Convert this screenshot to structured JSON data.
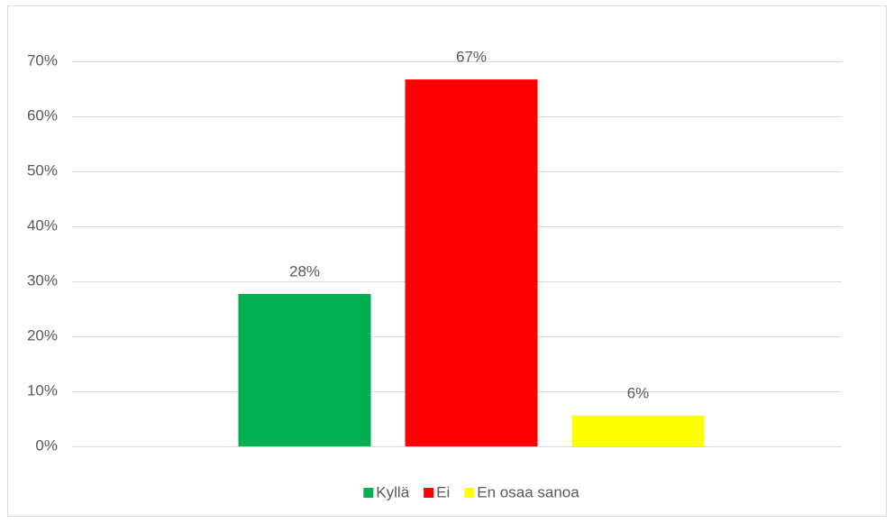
{
  "chart_data": {
    "type": "bar",
    "categories": [
      null
    ],
    "series": [
      {
        "name": "Kyllä",
        "color": "#00b050",
        "values": [
          27.7
        ],
        "value_labels": [
          "28%"
        ]
      },
      {
        "name": "Ei",
        "color": "#ff0000",
        "values": [
          66.7
        ],
        "value_labels": [
          "67%"
        ]
      },
      {
        "name": "En osaa sanoa",
        "color": "#ffff00",
        "values": [
          5.6
        ],
        "value_labels": [
          "6%"
        ]
      }
    ],
    "ylim": [
      0,
      70
    ],
    "yticks": [
      {
        "value": 0,
        "label": "0%"
      },
      {
        "value": 10,
        "label": "10%"
      },
      {
        "value": 20,
        "label": "20%"
      },
      {
        "value": 30,
        "label": "30%"
      },
      {
        "value": 40,
        "label": "40%"
      },
      {
        "value": 50,
        "label": "50%"
      },
      {
        "value": 60,
        "label": "60%"
      },
      {
        "value": 70,
        "label": "70%"
      }
    ],
    "grid": true,
    "legend": "bottom"
  }
}
